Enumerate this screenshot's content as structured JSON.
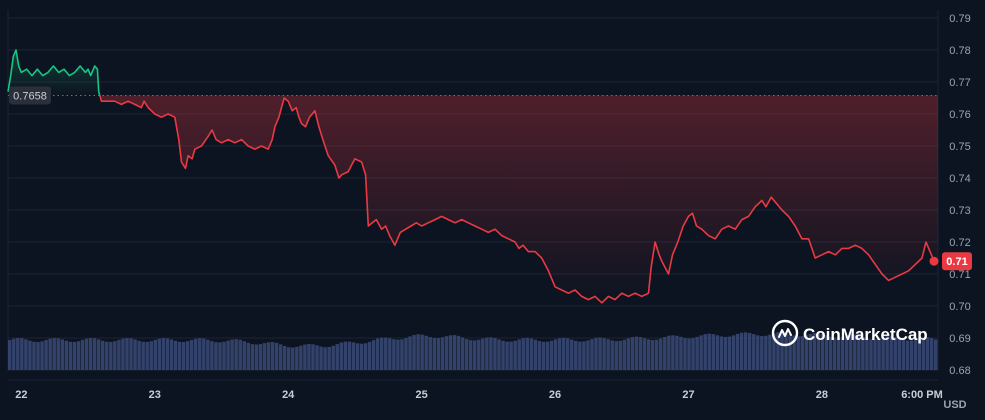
{
  "chart_data": {
    "type": "area",
    "title": "",
    "xlabel": "",
    "ylabel": "",
    "currency": "USD",
    "watermark": "CoinMarketCap",
    "ylim": [
      0.68,
      0.79
    ],
    "y_ticks": [
      "0.79",
      "0.78",
      "0.77",
      "0.76",
      "0.75",
      "0.74",
      "0.73",
      "0.72",
      "0.71",
      "0.70",
      "0.69",
      "0.68"
    ],
    "x_ticks": [
      {
        "label": "22",
        "t": 0.0
      },
      {
        "label": "23",
        "t": 1.0
      },
      {
        "label": "24",
        "t": 2.0
      },
      {
        "label": "25",
        "t": 3.0
      },
      {
        "label": "26",
        "t": 4.0
      },
      {
        "label": "27",
        "t": 5.0
      },
      {
        "label": "28",
        "t": 6.0
      },
      {
        "label": "6:00 PM",
        "t": 6.75
      }
    ],
    "x_range_days": [
      -0.1,
      6.87
    ],
    "reference_price": 0.7658,
    "reference_label": "0.7658",
    "current_price_label": "0.71",
    "colors": {
      "up": "#16c784",
      "down": "#ea3943",
      "volume": "#3b4a78",
      "grid": "#1c2433",
      "text": "#9aa3b2"
    },
    "price_points": [
      [
        -0.1,
        0.767
      ],
      [
        -0.08,
        0.772
      ],
      [
        -0.06,
        0.778
      ],
      [
        -0.04,
        0.78
      ],
      [
        -0.02,
        0.775
      ],
      [
        0.0,
        0.773
      ],
      [
        0.04,
        0.774
      ],
      [
        0.08,
        0.772
      ],
      [
        0.12,
        0.774
      ],
      [
        0.16,
        0.772
      ],
      [
        0.2,
        0.773
      ],
      [
        0.24,
        0.775
      ],
      [
        0.28,
        0.773
      ],
      [
        0.32,
        0.774
      ],
      [
        0.36,
        0.772
      ],
      [
        0.4,
        0.773
      ],
      [
        0.44,
        0.775
      ],
      [
        0.48,
        0.773
      ],
      [
        0.5,
        0.774
      ],
      [
        0.52,
        0.772
      ],
      [
        0.55,
        0.775
      ],
      [
        0.57,
        0.774
      ],
      [
        0.58,
        0.767
      ],
      [
        0.6,
        0.764
      ],
      [
        0.65,
        0.764
      ],
      [
        0.7,
        0.764
      ],
      [
        0.75,
        0.763
      ],
      [
        0.8,
        0.764
      ],
      [
        0.85,
        0.763
      ],
      [
        0.9,
        0.762
      ],
      [
        0.92,
        0.764
      ],
      [
        0.95,
        0.762
      ],
      [
        1.0,
        0.76
      ],
      [
        1.05,
        0.759
      ],
      [
        1.1,
        0.76
      ],
      [
        1.15,
        0.759
      ],
      [
        1.18,
        0.752
      ],
      [
        1.2,
        0.745
      ],
      [
        1.23,
        0.743
      ],
      [
        1.25,
        0.747
      ],
      [
        1.28,
        0.746
      ],
      [
        1.3,
        0.749
      ],
      [
        1.35,
        0.75
      ],
      [
        1.4,
        0.753
      ],
      [
        1.43,
        0.755
      ],
      [
        1.46,
        0.752
      ],
      [
        1.5,
        0.751
      ],
      [
        1.55,
        0.752
      ],
      [
        1.6,
        0.751
      ],
      [
        1.65,
        0.752
      ],
      [
        1.7,
        0.75
      ],
      [
        1.75,
        0.749
      ],
      [
        1.8,
        0.75
      ],
      [
        1.85,
        0.749
      ],
      [
        1.88,
        0.752
      ],
      [
        1.9,
        0.756
      ],
      [
        1.93,
        0.759
      ],
      [
        1.95,
        0.762
      ],
      [
        1.97,
        0.765
      ],
      [
        2.0,
        0.764
      ],
      [
        2.03,
        0.761
      ],
      [
        2.06,
        0.762
      ],
      [
        2.08,
        0.759
      ],
      [
        2.1,
        0.757
      ],
      [
        2.13,
        0.756
      ],
      [
        2.16,
        0.759
      ],
      [
        2.2,
        0.761
      ],
      [
        2.23,
        0.756
      ],
      [
        2.26,
        0.752
      ],
      [
        2.3,
        0.747
      ],
      [
        2.35,
        0.744
      ],
      [
        2.38,
        0.74
      ],
      [
        2.4,
        0.741
      ],
      [
        2.45,
        0.742
      ],
      [
        2.5,
        0.746
      ],
      [
        2.55,
        0.745
      ],
      [
        2.58,
        0.741
      ],
      [
        2.6,
        0.725
      ],
      [
        2.63,
        0.726
      ],
      [
        2.66,
        0.727
      ],
      [
        2.7,
        0.724
      ],
      [
        2.73,
        0.725
      ],
      [
        2.76,
        0.722
      ],
      [
        2.8,
        0.719
      ],
      [
        2.84,
        0.723
      ],
      [
        2.88,
        0.724
      ],
      [
        2.92,
        0.725
      ],
      [
        2.96,
        0.726
      ],
      [
        3.0,
        0.725
      ],
      [
        3.05,
        0.726
      ],
      [
        3.1,
        0.727
      ],
      [
        3.15,
        0.728
      ],
      [
        3.2,
        0.727
      ],
      [
        3.25,
        0.726
      ],
      [
        3.3,
        0.727
      ],
      [
        3.35,
        0.726
      ],
      [
        3.4,
        0.725
      ],
      [
        3.45,
        0.724
      ],
      [
        3.5,
        0.723
      ],
      [
        3.55,
        0.724
      ],
      [
        3.6,
        0.722
      ],
      [
        3.65,
        0.721
      ],
      [
        3.7,
        0.72
      ],
      [
        3.73,
        0.718
      ],
      [
        3.76,
        0.719
      ],
      [
        3.8,
        0.717
      ],
      [
        3.85,
        0.717
      ],
      [
        3.9,
        0.715
      ],
      [
        3.95,
        0.711
      ],
      [
        4.0,
        0.706
      ],
      [
        4.05,
        0.705
      ],
      [
        4.1,
        0.704
      ],
      [
        4.15,
        0.705
      ],
      [
        4.2,
        0.703
      ],
      [
        4.25,
        0.702
      ],
      [
        4.3,
        0.703
      ],
      [
        4.35,
        0.701
      ],
      [
        4.4,
        0.703
      ],
      [
        4.45,
        0.702
      ],
      [
        4.5,
        0.704
      ],
      [
        4.55,
        0.703
      ],
      [
        4.6,
        0.704
      ],
      [
        4.65,
        0.703
      ],
      [
        4.7,
        0.704
      ],
      [
        4.72,
        0.712
      ],
      [
        4.75,
        0.72
      ],
      [
        4.78,
        0.716
      ],
      [
        4.8,
        0.714
      ],
      [
        4.85,
        0.71
      ],
      [
        4.88,
        0.716
      ],
      [
        4.92,
        0.72
      ],
      [
        4.96,
        0.725
      ],
      [
        5.0,
        0.728
      ],
      [
        5.03,
        0.729
      ],
      [
        5.06,
        0.725
      ],
      [
        5.1,
        0.724
      ],
      [
        5.15,
        0.722
      ],
      [
        5.2,
        0.721
      ],
      [
        5.25,
        0.724
      ],
      [
        5.3,
        0.725
      ],
      [
        5.35,
        0.724
      ],
      [
        5.4,
        0.727
      ],
      [
        5.45,
        0.728
      ],
      [
        5.5,
        0.731
      ],
      [
        5.55,
        0.733
      ],
      [
        5.58,
        0.731
      ],
      [
        5.62,
        0.734
      ],
      [
        5.66,
        0.732
      ],
      [
        5.7,
        0.73
      ],
      [
        5.75,
        0.728
      ],
      [
        5.8,
        0.725
      ],
      [
        5.85,
        0.721
      ],
      [
        5.9,
        0.721
      ],
      [
        5.95,
        0.715
      ],
      [
        6.0,
        0.716
      ],
      [
        6.05,
        0.717
      ],
      [
        6.1,
        0.716
      ],
      [
        6.15,
        0.718
      ],
      [
        6.2,
        0.718
      ],
      [
        6.25,
        0.719
      ],
      [
        6.3,
        0.718
      ],
      [
        6.35,
        0.716
      ],
      [
        6.4,
        0.713
      ],
      [
        6.45,
        0.71
      ],
      [
        6.5,
        0.708
      ],
      [
        6.55,
        0.709
      ],
      [
        6.6,
        0.71
      ],
      [
        6.65,
        0.711
      ],
      [
        6.7,
        0.713
      ],
      [
        6.75,
        0.715
      ],
      [
        6.78,
        0.72
      ],
      [
        6.8,
        0.718
      ],
      [
        6.83,
        0.715
      ],
      [
        6.87,
        0.714
      ]
    ]
  }
}
